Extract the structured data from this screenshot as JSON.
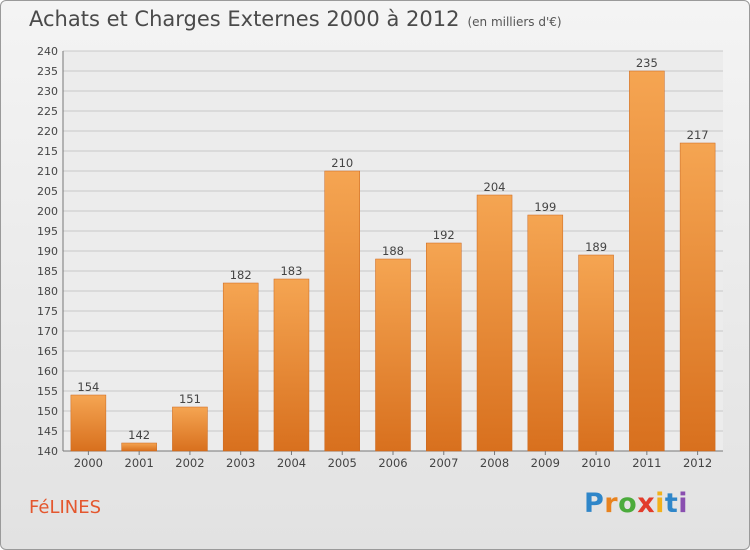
{
  "header": {
    "title": "Achats et Charges Externes 2000 à 2012",
    "unit": "(en milliers d'€)"
  },
  "footer": {
    "city": "FéLINES",
    "brand": [
      "P",
      "r",
      "o",
      "x",
      "i",
      "t",
      "i"
    ],
    "brand_colors": [
      "#2f86c9",
      "#e8821e",
      "#4bab3c",
      "#e23c2b",
      "#f2b11a",
      "#2f86c9",
      "#8a4fb0"
    ]
  },
  "chart_data": {
    "type": "bar",
    "categories": [
      "2000",
      "2001",
      "2002",
      "2003",
      "2004",
      "2005",
      "2006",
      "2007",
      "2008",
      "2009",
      "2010",
      "2011",
      "2012"
    ],
    "values": [
      154,
      142,
      151,
      182,
      183,
      210,
      188,
      192,
      204,
      199,
      189,
      235,
      217
    ],
    "ylim": [
      140,
      240
    ],
    "ytick_step": 5,
    "grid": true,
    "bar_color": "#ee8f33"
  }
}
